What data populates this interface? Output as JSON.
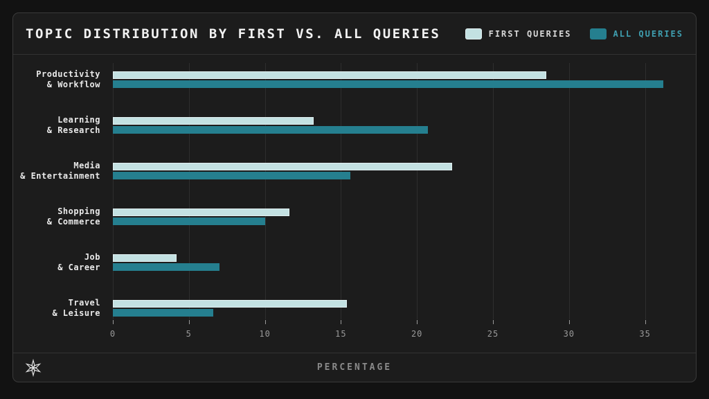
{
  "header": {
    "title": "TOPIC DISTRIBUTION BY FIRST VS. ALL QUERIES",
    "legend": [
      {
        "label": "FIRST QUERIES",
        "color": "#c3e1e2"
      },
      {
        "label": "ALL QUERIES",
        "color": "#257f8f"
      }
    ]
  },
  "footer": {
    "xlabel": "PERCENTAGE"
  },
  "colors": {
    "first_bar": "#c3e1e2",
    "all_bar": "#257f8f",
    "all_legend_text": "#3f9fb0",
    "background": "#121212",
    "card": "#1c1c1c",
    "grid": "#2e2e2e",
    "tick_text": "#9a9a9a"
  },
  "chart_data": {
    "type": "bar",
    "orientation": "horizontal",
    "title": "TOPIC DISTRIBUTION BY FIRST VS. ALL QUERIES",
    "xlabel": "PERCENTAGE",
    "ylabel": "",
    "categories": [
      [
        "Productivity",
        "& Workflow"
      ],
      [
        "Learning",
        "& Research"
      ],
      [
        "Media",
        "& Entertainment"
      ],
      [
        "Shopping",
        "& Commerce"
      ],
      [
        "Job",
        "& Career"
      ],
      [
        "Travel",
        "& Leisure"
      ]
    ],
    "series": [
      {
        "name": "FIRST QUERIES",
        "values": [
          28.5,
          13.2,
          22.3,
          11.6,
          4.2,
          15.4
        ]
      },
      {
        "name": "ALL QUERIES",
        "values": [
          36.2,
          20.7,
          15.6,
          10.0,
          7.0,
          6.6
        ]
      }
    ],
    "xticks": [
      0,
      5,
      10,
      15,
      20,
      25,
      30,
      35
    ],
    "xlim": [
      0,
      38.5
    ],
    "grid": true,
    "legend_position": "top-right"
  }
}
